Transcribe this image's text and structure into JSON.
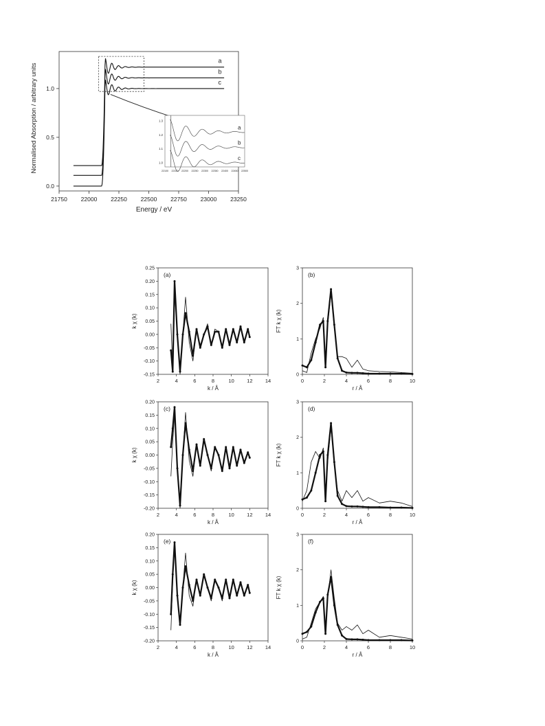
{
  "chart_data": [
    {
      "id": "xanes",
      "type": "line",
      "xlabel": "Energy / eV",
      "ylabel": "Normalised Absorption / arbitrary units",
      "xlim": [
        21750,
        23250
      ],
      "ylim": [
        -0.05,
        1.38
      ],
      "xticks": [
        "21750",
        "22000",
        "22250",
        "22500",
        "22750",
        "23000",
        "23250"
      ],
      "xtick_values": [
        21750,
        22000,
        22250,
        22500,
        22750,
        23000,
        23250
      ],
      "yticks": [
        "0.0",
        "0.5",
        "1.0"
      ],
      "ytick_values": [
        0.0,
        0.5,
        1.0
      ],
      "series": [
        {
          "name": "a",
          "pre_edge": 0.21,
          "post_edge": 1.22
        },
        {
          "name": "b",
          "pre_edge": 0.11,
          "post_edge": 1.11
        },
        {
          "name": "c",
          "pre_edge": 0.0,
          "post_edge": 1.0
        }
      ],
      "edge_energy": 22130,
      "inset": {
        "xticks": [
          "22100",
          "22150",
          "22200",
          "22250",
          "22300",
          "22350",
          "22400",
          "22450",
          "22500"
        ],
        "xtick_values": [
          22100,
          22150,
          22200,
          22250,
          22300,
          22350,
          22400,
          22450,
          22500
        ],
        "yticks": [
          "1.0",
          "1.1",
          "1.2",
          "1.3"
        ],
        "ytick_values": [
          1.0,
          1.1,
          1.2,
          1.3
        ],
        "xlim": [
          22100,
          22500
        ],
        "ylim": [
          0.97,
          1.34
        ],
        "labels": [
          "a",
          "b",
          "c"
        ]
      }
    },
    {
      "id": "a",
      "panel_label": "(a)",
      "type": "line",
      "xlabel": "k / Å",
      "ylabel": "k χ (k)",
      "xlim": [
        2,
        14
      ],
      "ylim": [
        -0.15,
        0.25
      ],
      "xticks": [
        "2",
        "4",
        "6",
        "8",
        "10",
        "12",
        "14"
      ],
      "xtick_values": [
        2,
        4,
        6,
        8,
        10,
        12,
        14
      ],
      "yticks": [
        "0.25",
        "0.20",
        "0.15",
        "0.10",
        "0.05",
        "0.00",
        "-0.05",
        "-0.10",
        "-0.15"
      ],
      "ytick_values": [
        0.25,
        0.2,
        0.15,
        0.1,
        0.05,
        0.0,
        -0.05,
        -0.1,
        -0.15
      ],
      "x": [
        3.4,
        3.6,
        3.8,
        4.1,
        4.4,
        4.7,
        5.0,
        5.4,
        5.8,
        6.2,
        6.6,
        7.0,
        7.4,
        7.8,
        8.2,
        8.6,
        9.0,
        9.4,
        9.8,
        10.2,
        10.6,
        11.0,
        11.4,
        11.8,
        12.0
      ],
      "series": [
        {
          "name": "",
          "values": [
            -0.06,
            -0.14,
            0.2,
            0.0,
            -0.14,
            0.0,
            0.08,
            0.01,
            -0.08,
            0.02,
            -0.05,
            0.0,
            0.03,
            -0.04,
            0.01,
            0.01,
            -0.05,
            0.02,
            -0.04,
            0.02,
            -0.03,
            0.03,
            -0.03,
            0.02,
            -0.01
          ]
        },
        {
          "name": "",
          "values": [
            0.04,
            -0.13,
            0.15,
            0.02,
            -0.15,
            0.0,
            0.14,
            -0.03,
            -0.1,
            0.02,
            -0.04,
            0.0,
            0.04,
            -0.04,
            0.02,
            0.01,
            -0.05,
            0.02,
            -0.04,
            0.02,
            -0.03,
            0.03,
            -0.03,
            0.02,
            -0.01
          ]
        }
      ]
    },
    {
      "id": "b",
      "panel_label": "(b)",
      "type": "line",
      "xlabel": "r / Å",
      "ylabel": "FT k χ (k)",
      "xlim": [
        0,
        10
      ],
      "ylim": [
        0,
        3
      ],
      "xticks": [
        "0",
        "2",
        "4",
        "6",
        "8",
        "10"
      ],
      "xtick_values": [
        0,
        2,
        4,
        6,
        8,
        10
      ],
      "yticks": [
        "0",
        "1",
        "2",
        "3"
      ],
      "ytick_values": [
        0,
        1,
        2,
        3
      ],
      "x": [
        0.0,
        0.4,
        0.8,
        1.2,
        1.6,
        1.9,
        2.1,
        2.3,
        2.6,
        2.9,
        3.2,
        3.6,
        4.0,
        4.5,
        5.0,
        5.5,
        6.0,
        7.0,
        8.0,
        9.0,
        10.0
      ],
      "series": [
        {
          "name": "",
          "values": [
            0.25,
            0.2,
            0.4,
            0.9,
            1.4,
            1.5,
            0.2,
            1.5,
            2.4,
            1.4,
            0.45,
            0.1,
            0.05,
            0.04,
            0.04,
            0.03,
            0.02,
            0.02,
            0.02,
            0.02,
            0.01
          ]
        },
        {
          "name": "",
          "values": [
            0.1,
            0.05,
            0.6,
            1.0,
            1.3,
            1.6,
            0.2,
            1.4,
            2.3,
            1.3,
            0.5,
            0.5,
            0.45,
            0.2,
            0.4,
            0.15,
            0.1,
            0.08,
            0.07,
            0.05,
            0.03
          ]
        }
      ]
    },
    {
      "id": "c",
      "panel_label": "(c)",
      "type": "line",
      "xlabel": "k / Å",
      "ylabel": "k χ (k)",
      "xlim": [
        2,
        14
      ],
      "ylim": [
        -0.2,
        0.2
      ],
      "xticks": [
        "2",
        "4",
        "6",
        "8",
        "10",
        "12",
        "14"
      ],
      "xtick_values": [
        2,
        4,
        6,
        8,
        10,
        12,
        14
      ],
      "yticks": [
        "0.20",
        "0.15",
        "0.10",
        "0.05",
        "0.00",
        "-0.05",
        "-0.10",
        "-0.15",
        "-0.20"
      ],
      "ytick_values": [
        0.2,
        0.15,
        0.1,
        0.05,
        0.0,
        -0.05,
        -0.1,
        -0.15,
        -0.2
      ],
      "x": [
        3.4,
        3.6,
        3.8,
        4.1,
        4.4,
        4.7,
        5.0,
        5.4,
        5.8,
        6.2,
        6.6,
        7.0,
        7.4,
        7.8,
        8.2,
        8.6,
        9.0,
        9.4,
        9.8,
        10.2,
        10.6,
        11.0,
        11.4,
        11.8,
        12.0
      ],
      "series": [
        {
          "name": "",
          "values": [
            0.03,
            0.1,
            0.18,
            -0.05,
            -0.19,
            0.0,
            0.12,
            0.02,
            -0.06,
            0.04,
            -0.04,
            0.06,
            0.0,
            -0.05,
            0.03,
            0.0,
            -0.06,
            0.03,
            -0.05,
            0.03,
            -0.04,
            0.02,
            -0.03,
            0.01,
            -0.01
          ]
        },
        {
          "name": "",
          "values": [
            -0.08,
            0.05,
            0.15,
            -0.03,
            -0.2,
            0.0,
            0.16,
            -0.02,
            -0.08,
            0.04,
            -0.04,
            0.06,
            0.0,
            -0.06,
            0.03,
            0.0,
            -0.06,
            0.03,
            -0.05,
            0.03,
            -0.04,
            0.02,
            -0.03,
            0.01,
            -0.01
          ]
        }
      ]
    },
    {
      "id": "d",
      "panel_label": "(d)",
      "type": "line",
      "xlabel": "r / Å",
      "ylabel": "FT k χ (k)",
      "xlim": [
        0,
        10
      ],
      "ylim": [
        0,
        3
      ],
      "xticks": [
        "0",
        "2",
        "4",
        "6",
        "8",
        "10"
      ],
      "xtick_values": [
        0,
        2,
        4,
        6,
        8,
        10
      ],
      "yticks": [
        "0",
        "1",
        "2",
        "3"
      ],
      "ytick_values": [
        0,
        1,
        2,
        3
      ],
      "x": [
        0.0,
        0.4,
        0.8,
        1.2,
        1.6,
        1.9,
        2.1,
        2.3,
        2.6,
        2.9,
        3.2,
        3.6,
        4.0,
        4.5,
        5.0,
        5.5,
        6.0,
        7.0,
        8.0,
        9.0,
        10.0
      ],
      "series": [
        {
          "name": "",
          "values": [
            0.25,
            0.3,
            0.5,
            1.0,
            1.5,
            1.6,
            0.2,
            1.5,
            2.4,
            1.3,
            0.35,
            0.12,
            0.06,
            0.05,
            0.05,
            0.04,
            0.03,
            0.03,
            0.02,
            0.02,
            0.01
          ]
        },
        {
          "name": "",
          "values": [
            0.2,
            0.5,
            1.3,
            1.6,
            1.4,
            1.7,
            0.2,
            1.3,
            2.3,
            1.2,
            0.5,
            0.2,
            0.5,
            0.3,
            0.5,
            0.2,
            0.3,
            0.15,
            0.2,
            0.15,
            0.05
          ]
        }
      ]
    },
    {
      "id": "e",
      "panel_label": "(e)",
      "type": "line",
      "xlabel": "k / Å",
      "ylabel": "k χ (k)",
      "xlim": [
        2,
        14
      ],
      "ylim": [
        -0.2,
        0.2
      ],
      "xticks": [
        "2",
        "4",
        "6",
        "8",
        "10",
        "12",
        "14"
      ],
      "xtick_values": [
        2,
        4,
        6,
        8,
        10,
        12,
        14
      ],
      "yticks": [
        "0.20",
        "0.15",
        "0.10",
        "0.05",
        "0.00",
        "-0.05",
        "-0.10",
        "-0.15",
        "-0.20"
      ],
      "ytick_values": [
        0.2,
        0.15,
        0.1,
        0.05,
        0.0,
        -0.05,
        -0.1,
        -0.15,
        -0.2
      ],
      "x": [
        3.4,
        3.6,
        3.8,
        4.1,
        4.4,
        4.7,
        5.0,
        5.4,
        5.8,
        6.2,
        6.6,
        7.0,
        7.4,
        7.8,
        8.2,
        8.6,
        9.0,
        9.4,
        9.8,
        10.2,
        10.6,
        11.0,
        11.4,
        11.8,
        12.0
      ],
      "series": [
        {
          "name": "",
          "values": [
            -0.1,
            0.05,
            0.17,
            -0.03,
            -0.14,
            0.0,
            0.08,
            0.01,
            -0.05,
            0.03,
            -0.03,
            0.05,
            0.0,
            -0.04,
            0.03,
            0.0,
            -0.04,
            0.03,
            -0.04,
            0.03,
            -0.03,
            0.02,
            -0.03,
            0.01,
            -0.02
          ]
        },
        {
          "name": "",
          "values": [
            -0.16,
            0.02,
            0.16,
            -0.02,
            -0.14,
            0.0,
            0.13,
            -0.03,
            -0.07,
            0.03,
            -0.03,
            0.05,
            0.0,
            -0.05,
            0.03,
            0.0,
            -0.05,
            0.03,
            -0.04,
            0.03,
            -0.03,
            0.02,
            -0.03,
            0.01,
            -0.02
          ]
        }
      ]
    },
    {
      "id": "f",
      "panel_label": "(f)",
      "type": "line",
      "xlabel": "r / Å",
      "ylabel": "FT k χ (k)",
      "xlim": [
        0,
        10
      ],
      "ylim": [
        0,
        3
      ],
      "xticks": [
        "0",
        "2",
        "4",
        "6",
        "8",
        "10"
      ],
      "xtick_values": [
        0,
        2,
        4,
        6,
        8,
        10
      ],
      "yticks": [
        "0",
        "1",
        "2",
        "3"
      ],
      "ytick_values": [
        0,
        1,
        2,
        3
      ],
      "x": [
        0.0,
        0.4,
        0.8,
        1.2,
        1.6,
        1.9,
        2.1,
        2.3,
        2.6,
        2.9,
        3.2,
        3.6,
        4.0,
        4.5,
        5.0,
        5.5,
        6.0,
        7.0,
        8.0,
        9.0,
        10.0
      ],
      "series": [
        {
          "name": "",
          "values": [
            0.2,
            0.25,
            0.4,
            0.8,
            1.1,
            1.2,
            0.2,
            1.3,
            1.8,
            1.0,
            0.45,
            0.15,
            0.05,
            0.04,
            0.04,
            0.03,
            0.02,
            0.02,
            0.02,
            0.02,
            0.01
          ]
        },
        {
          "name": "",
          "values": [
            0.05,
            0.1,
            0.5,
            0.9,
            1.1,
            1.25,
            0.2,
            1.2,
            2.0,
            1.2,
            0.5,
            0.3,
            0.4,
            0.3,
            0.45,
            0.2,
            0.3,
            0.1,
            0.15,
            0.1,
            0.05
          ]
        }
      ]
    }
  ]
}
